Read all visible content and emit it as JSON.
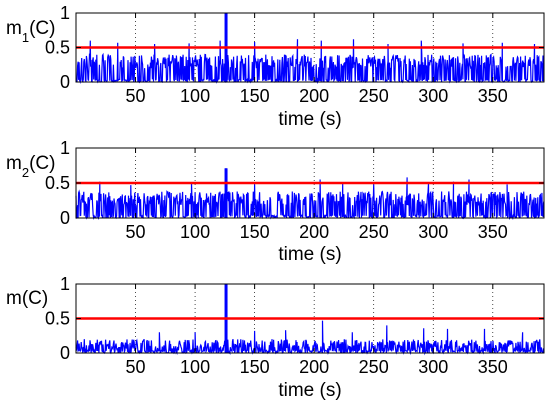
{
  "chart_data": [
    {
      "type": "line",
      "ylabel_main": "m",
      "ylabel_sub": "1",
      "ylabel_tail": "(C)",
      "xlabel": "time (s)",
      "xlim": [
        0,
        393
      ],
      "ylim": [
        0,
        1
      ],
      "xticks": [
        50,
        100,
        150,
        200,
        250,
        300,
        350
      ],
      "yticks": [
        0,
        0.5,
        1
      ],
      "ytick_labels": [
        "0",
        "0.5",
        "1"
      ],
      "grid": "vertical-dotted",
      "threshold": 0.5,
      "series": [
        {
          "color": "#0000ff",
          "baseline": 0.3,
          "spread": 0.1,
          "peak": {
            "x": 126,
            "y": 1.0
          },
          "spikes": [
            [
              12,
              0.6
            ],
            [
              35,
              0.57
            ],
            [
              66,
              0.55
            ],
            [
              95,
              0.56
            ],
            [
              121,
              0.6
            ],
            [
              150,
              0.58
            ],
            [
              186,
              0.62
            ],
            [
              206,
              0.6
            ],
            [
              233,
              0.62
            ],
            [
              262,
              0.55
            ],
            [
              290,
              0.6
            ],
            [
              325,
              0.56
            ],
            [
              358,
              0.57
            ],
            [
              385,
              0.55
            ]
          ]
        },
        {
          "color": "#ff0000",
          "values": [
            0.5,
            0.5
          ],
          "x": [
            0,
            393
          ]
        }
      ]
    },
    {
      "type": "line",
      "ylabel_main": "m",
      "ylabel_sub": "2",
      "ylabel_tail": "(C)",
      "xlabel": "time (s)",
      "xlim": [
        0,
        393
      ],
      "ylim": [
        0,
        1
      ],
      "xticks": [
        50,
        100,
        150,
        200,
        250,
        300,
        350
      ],
      "yticks": [
        0,
        0.5,
        1
      ],
      "ytick_labels": [
        "0",
        "0.5",
        "1"
      ],
      "grid": "vertical-dotted",
      "threshold": 0.5,
      "series": [
        {
          "color": "#0000ff",
          "baseline": 0.28,
          "spread": 0.1,
          "peak": {
            "x": 126,
            "y": 0.71
          },
          "spikes": [
            [
              20,
              0.52
            ],
            [
              46,
              0.47
            ],
            [
              97,
              0.5
            ],
            [
              150,
              0.48
            ],
            [
              205,
              0.55
            ],
            [
              224,
              0.5
            ],
            [
              250,
              0.48
            ],
            [
              278,
              0.58
            ],
            [
              296,
              0.5
            ],
            [
              317,
              0.52
            ],
            [
              330,
              0.55
            ],
            [
              362,
              0.48
            ]
          ]
        },
        {
          "color": "#ff0000",
          "values": [
            0.5,
            0.5
          ],
          "x": [
            0,
            393
          ]
        }
      ]
    },
    {
      "type": "line",
      "ylabel_main": "m",
      "ylabel_sub": "",
      "ylabel_tail": "(C)",
      "xlabel": "time (s)",
      "xlim": [
        0,
        393
      ],
      "ylim": [
        0,
        1
      ],
      "xticks": [
        50,
        100,
        150,
        200,
        250,
        300,
        350
      ],
      "yticks": [
        0,
        0.5,
        1
      ],
      "ytick_labels": [
        "0",
        "0.5",
        "1"
      ],
      "grid": "vertical-dotted",
      "threshold": 0.5,
      "series": [
        {
          "color": "#0000ff",
          "baseline": 0.13,
          "spread": 0.07,
          "peak": {
            "x": 126,
            "y": 1.0
          },
          "spikes": [
            [
              70,
              0.3
            ],
            [
              100,
              0.3
            ],
            [
              150,
              0.32
            ],
            [
              176,
              0.33
            ],
            [
              207,
              0.47
            ],
            [
              232,
              0.3
            ],
            [
              261,
              0.4
            ],
            [
              292,
              0.36
            ],
            [
              312,
              0.35
            ],
            [
              343,
              0.35
            ],
            [
              375,
              0.3
            ]
          ]
        },
        {
          "color": "#ff0000",
          "values": [
            0.5,
            0.5
          ],
          "x": [
            0,
            393
          ]
        }
      ]
    }
  ]
}
